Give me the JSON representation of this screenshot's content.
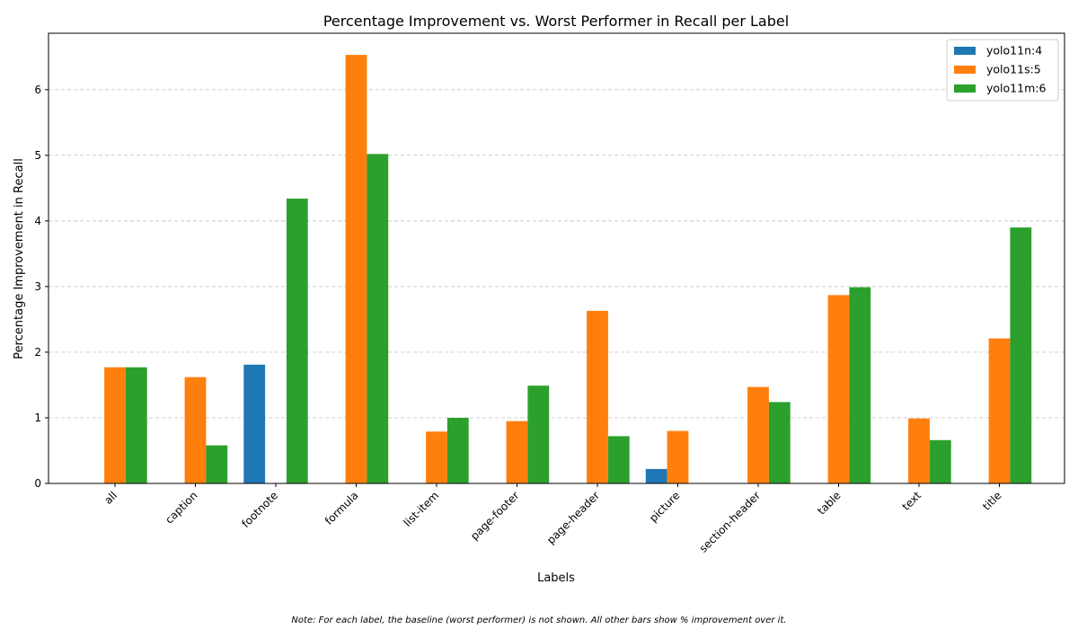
{
  "chart_data": {
    "type": "bar",
    "title": "Percentage Improvement vs. Worst Performer in Recall per Label",
    "xlabel": "Labels",
    "ylabel": "Percentage Improvement in Recall",
    "categories": [
      "all",
      "caption",
      "footnote",
      "formula",
      "list-item",
      "page-footer",
      "page-header",
      "picture",
      "section-header",
      "table",
      "text",
      "title"
    ],
    "series": [
      {
        "name": "yolo11n:4",
        "color": "#1f77b4",
        "values": [
          null,
          null,
          1.81,
          null,
          null,
          null,
          null,
          0.22,
          null,
          null,
          null,
          null
        ]
      },
      {
        "name": "yolo11s:5",
        "color": "#ff7f0e",
        "values": [
          1.77,
          1.62,
          null,
          6.53,
          0.79,
          0.95,
          2.63,
          0.8,
          1.47,
          2.87,
          0.99,
          2.21
        ]
      },
      {
        "name": "yolo11m:6",
        "color": "#2ca02c",
        "values": [
          1.77,
          0.58,
          4.34,
          5.02,
          1.0,
          1.49,
          0.72,
          null,
          1.24,
          2.99,
          0.66,
          3.9
        ]
      }
    ],
    "ylim": [
      0,
      6.86
    ],
    "yticks": [
      0,
      1,
      2,
      3,
      4,
      5,
      6
    ],
    "grid": "y-dashed",
    "legend_position": "top-right",
    "note": "Note: For each label, the baseline (worst performer) is not shown. All other bars show % improvement over it."
  }
}
